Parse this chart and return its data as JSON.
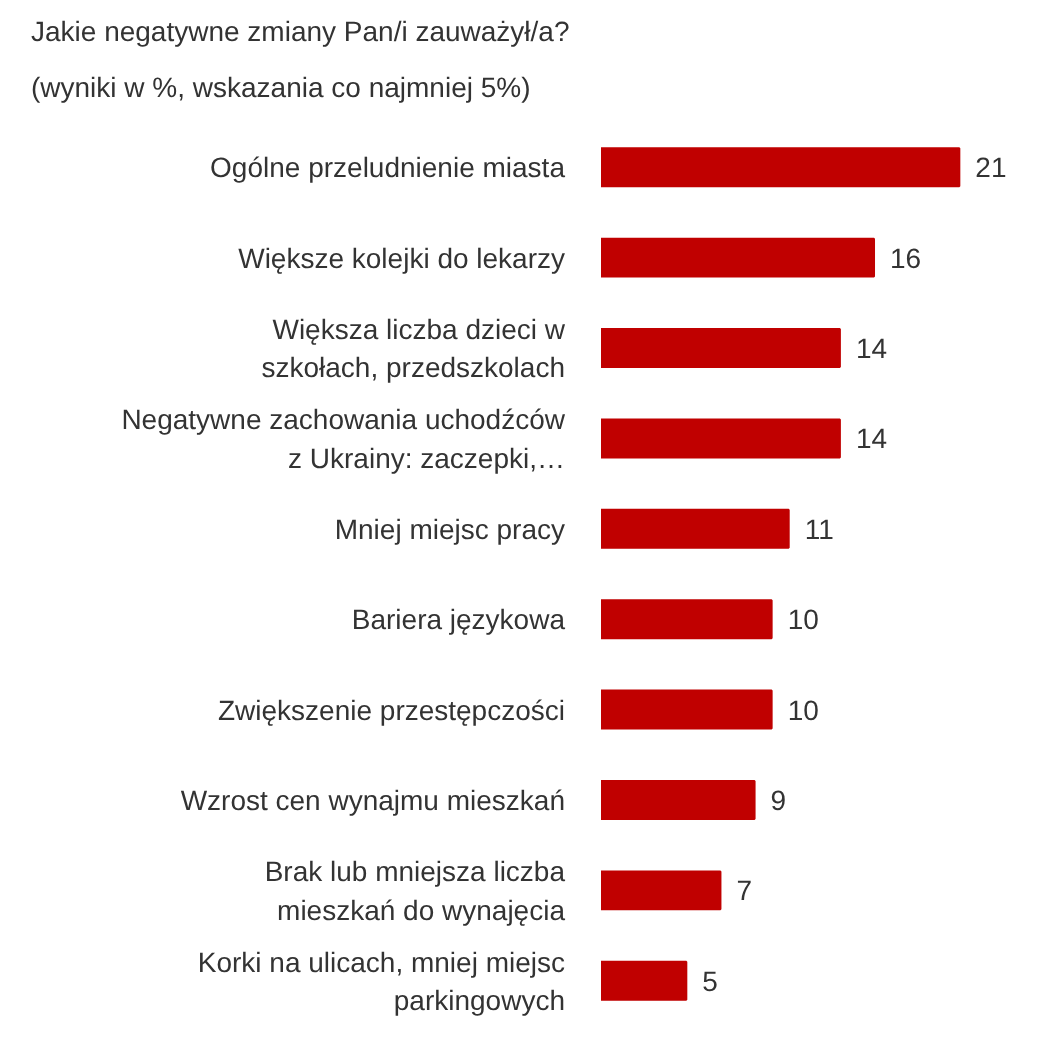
{
  "chart_data": {
    "type": "bar",
    "orientation": "horizontal",
    "title": "Jakie negatywne zmiany Pan/i zauważył/a?",
    "subtitle": "(wyniki w %, wskazania co najmniej 5%)",
    "categories": [
      "Ogólne przeludnienie miasta",
      "Większe kolejki do lekarzy",
      "Większa liczba dzieci w szkołach, przedszkolach",
      "Negatywne zachowania uchodźców z Ukrainy: zaczepki,…",
      "Mniej miejsc pracy",
      "Bariera językowa",
      "Zwiększenie przestępczości",
      "Wzrost cen wynajmu mieszkań",
      "Brak lub mniejsza liczba mieszkań do wynajęcia",
      "Korki na ulicach, mniej miejsc parkingowych"
    ],
    "values": [
      21,
      16,
      14,
      14,
      11,
      10,
      10,
      9,
      7,
      5
    ],
    "color": "#c00000",
    "data_labels": true
  }
}
